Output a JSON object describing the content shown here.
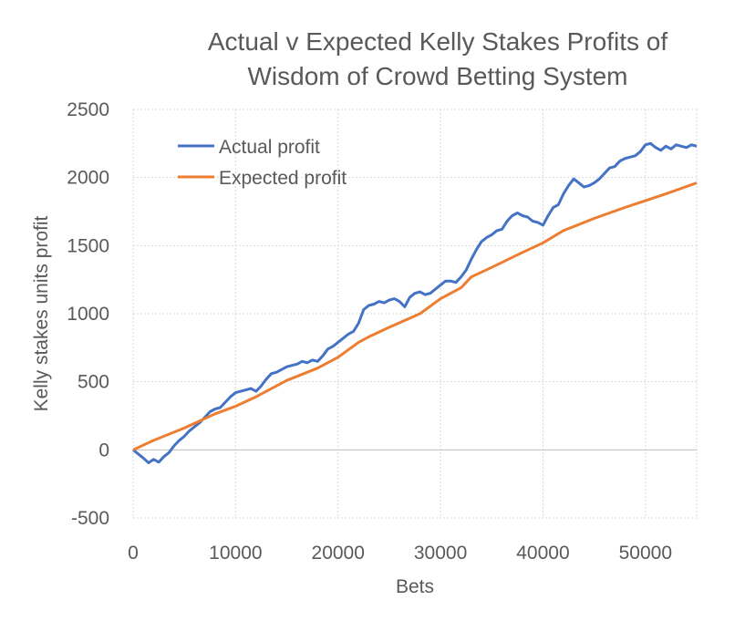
{
  "chart_data": {
    "type": "line",
    "title_lines": [
      "Actual v Expected Kelly Stakes Profits of",
      "Wisdom of Crowd Betting System"
    ],
    "xlabel": "Bets",
    "ylabel": "Kelly stakes units profit",
    "xlim": [
      0,
      55000
    ],
    "ylim": [
      -500,
      2500
    ],
    "x_ticks": [
      0,
      10000,
      20000,
      30000,
      40000,
      50000
    ],
    "y_ticks": [
      -500,
      0,
      500,
      1000,
      1500,
      2000,
      2500
    ],
    "grid": true,
    "legend_position": "top-left",
    "series": [
      {
        "name": "Actual profit",
        "color": "#4472C4",
        "points": [
          [
            0,
            0
          ],
          [
            500,
            -30
          ],
          [
            1000,
            -60
          ],
          [
            1500,
            -95
          ],
          [
            2000,
            -70
          ],
          [
            2500,
            -90
          ],
          [
            3000,
            -50
          ],
          [
            3500,
            -20
          ],
          [
            4000,
            30
          ],
          [
            4500,
            70
          ],
          [
            5000,
            100
          ],
          [
            5500,
            140
          ],
          [
            6000,
            170
          ],
          [
            6500,
            200
          ],
          [
            7000,
            240
          ],
          [
            7500,
            280
          ],
          [
            8000,
            300
          ],
          [
            8500,
            310
          ],
          [
            9000,
            350
          ],
          [
            9500,
            390
          ],
          [
            10000,
            420
          ],
          [
            10500,
            430
          ],
          [
            11000,
            440
          ],
          [
            11500,
            450
          ],
          [
            12000,
            430
          ],
          [
            12500,
            470
          ],
          [
            13000,
            520
          ],
          [
            13500,
            560
          ],
          [
            14000,
            570
          ],
          [
            14500,
            590
          ],
          [
            15000,
            610
          ],
          [
            15500,
            620
          ],
          [
            16000,
            630
          ],
          [
            16500,
            650
          ],
          [
            17000,
            640
          ],
          [
            17500,
            660
          ],
          [
            18000,
            650
          ],
          [
            18500,
            690
          ],
          [
            19000,
            740
          ],
          [
            19500,
            760
          ],
          [
            20000,
            790
          ],
          [
            20500,
            820
          ],
          [
            21000,
            850
          ],
          [
            21500,
            870
          ],
          [
            22000,
            930
          ],
          [
            22500,
            1030
          ],
          [
            23000,
            1060
          ],
          [
            23500,
            1070
          ],
          [
            24000,
            1090
          ],
          [
            24500,
            1080
          ],
          [
            25000,
            1100
          ],
          [
            25500,
            1110
          ],
          [
            26000,
            1090
          ],
          [
            26500,
            1050
          ],
          [
            27000,
            1120
          ],
          [
            27500,
            1150
          ],
          [
            28000,
            1160
          ],
          [
            28500,
            1140
          ],
          [
            29000,
            1150
          ],
          [
            29500,
            1180
          ],
          [
            30000,
            1210
          ],
          [
            30500,
            1240
          ],
          [
            31000,
            1240
          ],
          [
            31500,
            1230
          ],
          [
            32000,
            1270
          ],
          [
            32500,
            1320
          ],
          [
            33000,
            1400
          ],
          [
            33500,
            1470
          ],
          [
            34000,
            1530
          ],
          [
            34500,
            1560
          ],
          [
            35000,
            1580
          ],
          [
            35500,
            1610
          ],
          [
            36000,
            1620
          ],
          [
            36500,
            1680
          ],
          [
            37000,
            1720
          ],
          [
            37500,
            1740
          ],
          [
            38000,
            1720
          ],
          [
            38500,
            1710
          ],
          [
            39000,
            1680
          ],
          [
            39500,
            1670
          ],
          [
            40000,
            1650
          ],
          [
            40500,
            1720
          ],
          [
            41000,
            1780
          ],
          [
            41500,
            1800
          ],
          [
            42000,
            1880
          ],
          [
            42500,
            1940
          ],
          [
            43000,
            1990
          ],
          [
            43500,
            1960
          ],
          [
            44000,
            1930
          ],
          [
            44500,
            1940
          ],
          [
            45000,
            1960
          ],
          [
            45500,
            1990
          ],
          [
            46000,
            2030
          ],
          [
            46500,
            2070
          ],
          [
            47000,
            2080
          ],
          [
            47500,
            2120
          ],
          [
            48000,
            2140
          ],
          [
            48500,
            2150
          ],
          [
            49000,
            2160
          ],
          [
            49500,
            2190
          ],
          [
            50000,
            2240
          ],
          [
            50500,
            2250
          ],
          [
            51000,
            2220
          ],
          [
            51500,
            2200
          ],
          [
            52000,
            2230
          ],
          [
            52500,
            2210
          ],
          [
            53000,
            2240
          ],
          [
            53500,
            2230
          ],
          [
            54000,
            2220
          ],
          [
            54500,
            2240
          ],
          [
            55000,
            2230
          ]
        ]
      },
      {
        "name": "Expected profit",
        "color": "#ED7D31",
        "points": [
          [
            0,
            0
          ],
          [
            2000,
            70
          ],
          [
            5000,
            160
          ],
          [
            8000,
            265
          ],
          [
            10000,
            320
          ],
          [
            12000,
            390
          ],
          [
            15000,
            510
          ],
          [
            18000,
            600
          ],
          [
            20000,
            680
          ],
          [
            22000,
            790
          ],
          [
            23000,
            830
          ],
          [
            25000,
            900
          ],
          [
            28000,
            1000
          ],
          [
            30000,
            1110
          ],
          [
            32000,
            1190
          ],
          [
            33000,
            1270
          ],
          [
            35000,
            1340
          ],
          [
            38000,
            1450
          ],
          [
            40000,
            1520
          ],
          [
            42000,
            1610
          ],
          [
            45000,
            1700
          ],
          [
            48000,
            1780
          ],
          [
            50000,
            1830
          ],
          [
            52000,
            1880
          ],
          [
            55000,
            1960
          ]
        ]
      }
    ]
  }
}
